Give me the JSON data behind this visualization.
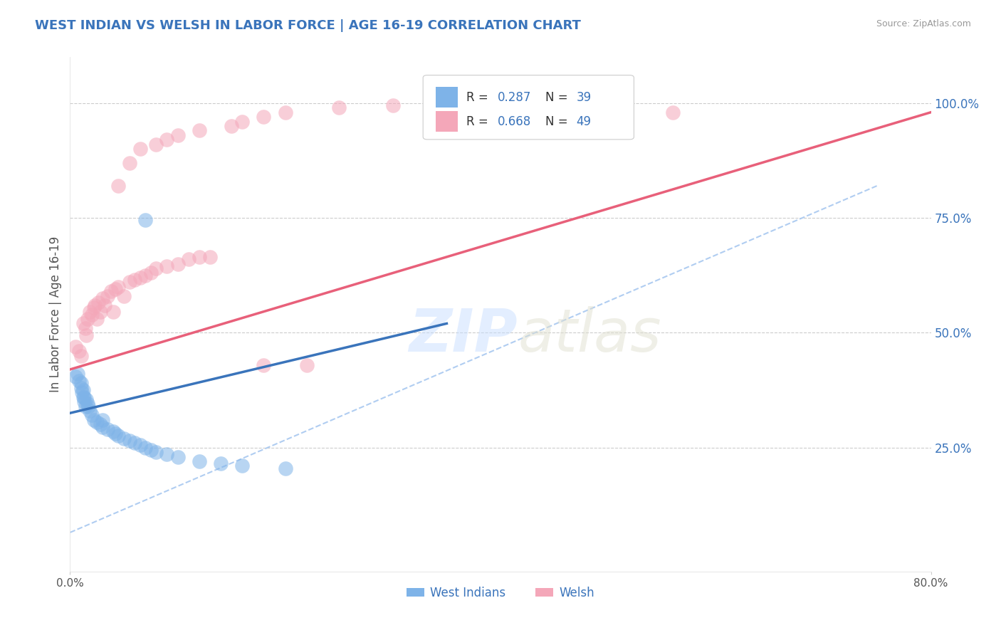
{
  "title": "WEST INDIAN VS WELSH IN LABOR FORCE | AGE 16-19 CORRELATION CHART",
  "source": "Source: ZipAtlas.com",
  "ylabel": "In Labor Force | Age 16-19",
  "xlim": [
    0.0,
    0.8
  ],
  "ylim": [
    -0.02,
    1.1
  ],
  "xtick_positions": [
    0.0,
    0.8
  ],
  "xtick_labels": [
    "0.0%",
    "80.0%"
  ],
  "ytick_positions": [
    0.25,
    0.5,
    0.75,
    1.0
  ],
  "ytick_labels": [
    "25.0%",
    "50.0%",
    "75.0%",
    "100.0%"
  ],
  "legend_r1": "R = 0.287",
  "legend_n1": "N = 39",
  "legend_r2": "R = 0.668",
  "legend_n2": "N = 49",
  "legend_label1": "West Indians",
  "legend_label2": "Welsh",
  "blue_color": "#7EB3E8",
  "pink_color": "#F4A7B9",
  "blue_line_color": "#3A74BB",
  "pink_line_color": "#E8607A",
  "dash_line_color": "#A8C8F0",
  "title_color": "#3A74BB",
  "source_color": "#999999",
  "legend_value_color": "#3A74BB",
  "right_tick_color": "#3A74BB",
  "blue_dots": [
    [
      0.005,
      0.405
    ],
    [
      0.007,
      0.41
    ],
    [
      0.008,
      0.395
    ],
    [
      0.01,
      0.38
    ],
    [
      0.01,
      0.39
    ],
    [
      0.011,
      0.37
    ],
    [
      0.012,
      0.36
    ],
    [
      0.012,
      0.375
    ],
    [
      0.013,
      0.35
    ],
    [
      0.013,
      0.36
    ],
    [
      0.014,
      0.34
    ],
    [
      0.015,
      0.355
    ],
    [
      0.016,
      0.345
    ],
    [
      0.017,
      0.34
    ],
    [
      0.018,
      0.33
    ],
    [
      0.02,
      0.32
    ],
    [
      0.022,
      0.31
    ],
    [
      0.025,
      0.305
    ],
    [
      0.028,
      0.3
    ],
    [
      0.03,
      0.295
    ],
    [
      0.03,
      0.31
    ],
    [
      0.035,
      0.29
    ],
    [
      0.04,
      0.285
    ],
    [
      0.042,
      0.28
    ],
    [
      0.045,
      0.275
    ],
    [
      0.05,
      0.27
    ],
    [
      0.055,
      0.265
    ],
    [
      0.06,
      0.26
    ],
    [
      0.065,
      0.255
    ],
    [
      0.07,
      0.25
    ],
    [
      0.075,
      0.245
    ],
    [
      0.08,
      0.24
    ],
    [
      0.09,
      0.235
    ],
    [
      0.1,
      0.23
    ],
    [
      0.12,
      0.22
    ],
    [
      0.14,
      0.215
    ],
    [
      0.16,
      0.21
    ],
    [
      0.07,
      0.745
    ],
    [
      0.2,
      0.205
    ]
  ],
  "pink_dots": [
    [
      0.005,
      0.47
    ],
    [
      0.008,
      0.46
    ],
    [
      0.01,
      0.45
    ],
    [
      0.012,
      0.52
    ],
    [
      0.014,
      0.51
    ],
    [
      0.015,
      0.495
    ],
    [
      0.016,
      0.53
    ],
    [
      0.018,
      0.545
    ],
    [
      0.02,
      0.54
    ],
    [
      0.022,
      0.555
    ],
    [
      0.023,
      0.56
    ],
    [
      0.025,
      0.53
    ],
    [
      0.026,
      0.565
    ],
    [
      0.028,
      0.545
    ],
    [
      0.03,
      0.575
    ],
    [
      0.032,
      0.56
    ],
    [
      0.035,
      0.58
    ],
    [
      0.038,
      0.59
    ],
    [
      0.04,
      0.545
    ],
    [
      0.042,
      0.595
    ],
    [
      0.045,
      0.6
    ],
    [
      0.05,
      0.58
    ],
    [
      0.055,
      0.61
    ],
    [
      0.06,
      0.615
    ],
    [
      0.065,
      0.62
    ],
    [
      0.07,
      0.625
    ],
    [
      0.075,
      0.63
    ],
    [
      0.08,
      0.64
    ],
    [
      0.09,
      0.645
    ],
    [
      0.1,
      0.65
    ],
    [
      0.11,
      0.66
    ],
    [
      0.12,
      0.665
    ],
    [
      0.13,
      0.665
    ],
    [
      0.18,
      0.43
    ],
    [
      0.22,
      0.43
    ],
    [
      0.045,
      0.82
    ],
    [
      0.055,
      0.87
    ],
    [
      0.065,
      0.9
    ],
    [
      0.08,
      0.91
    ],
    [
      0.09,
      0.92
    ],
    [
      0.1,
      0.93
    ],
    [
      0.12,
      0.94
    ],
    [
      0.15,
      0.95
    ],
    [
      0.16,
      0.96
    ],
    [
      0.18,
      0.97
    ],
    [
      0.2,
      0.98
    ],
    [
      0.25,
      0.99
    ],
    [
      0.3,
      0.995
    ],
    [
      0.56,
      0.98
    ]
  ],
  "blue_line": [
    [
      0.0,
      0.325
    ],
    [
      0.35,
      0.52
    ]
  ],
  "pink_line": [
    [
      0.0,
      0.42
    ],
    [
      0.8,
      0.98
    ]
  ],
  "dash_line": [
    [
      0.0,
      0.065
    ],
    [
      0.75,
      0.82
    ]
  ]
}
